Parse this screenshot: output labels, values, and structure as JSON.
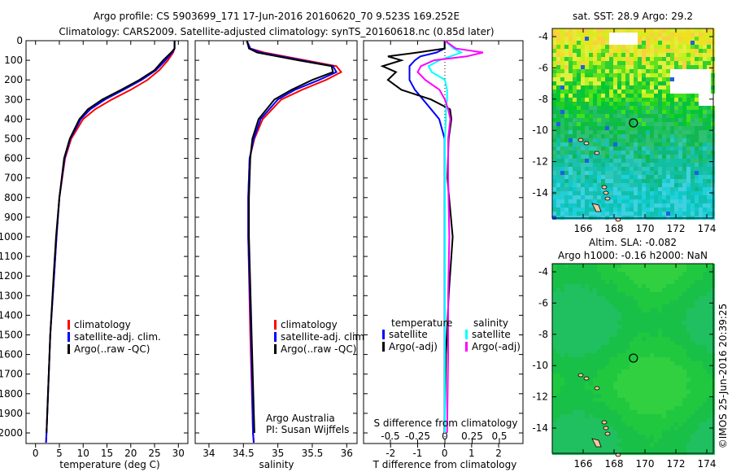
{
  "title_line1": "Argo profile: CS 5903699_171 17-Jun-2016 20160620_70 9.523S 169.252E",
  "title_line2": "Climatology: CARS2009. Satellite-adjusted climatology: synTS_20160618.nc (0.85d later)",
  "credit": "©IMOS 25-Jun-2016 20:39:25",
  "colors": {
    "climatology": "#ff0000",
    "satellite": "#0000ff",
    "argo": "#000000",
    "sal_sat": "#00ffff",
    "sal_argo": "#ff00ff",
    "land": "#f5c8a0"
  },
  "chart_data": [
    {
      "type": "line",
      "xlabel": "temperature (deg C)",
      "ylabel": "",
      "xlim": [
        -2,
        32
      ],
      "ylim": [
        2050,
        0
      ],
      "xticks": [
        0,
        5,
        10,
        15,
        20,
        25,
        30
      ],
      "yticks": [
        0,
        100,
        200,
        300,
        400,
        500,
        600,
        700,
        800,
        900,
        1000,
        1100,
        1200,
        1300,
        1400,
        1500,
        1600,
        1700,
        1800,
        1900,
        2000
      ],
      "legend": [
        "climatology",
        "satellite-adj. clim.",
        "Argo(..raw -QC)"
      ],
      "legend_position": "lower-center",
      "depth": [
        0,
        40,
        60,
        100,
        150,
        200,
        250,
        300,
        350,
        400,
        500,
        600,
        800,
        1000,
        1200,
        1500,
        2000,
        2050
      ],
      "series": [
        {
          "name": "climatology",
          "color": "#ff0000",
          "values": [
            29.2,
            29.2,
            28.9,
            27.8,
            26,
            23.5,
            20,
            16,
            12.5,
            10,
            7.5,
            6.2,
            5,
            4.4,
            3.9,
            3.1,
            2.3,
            2.2
          ]
        },
        {
          "name": "satellite-adj. clim.",
          "color": "#0000ff",
          "values": [
            29.2,
            29.2,
            28.7,
            27.3,
            25.3,
            22.3,
            18.5,
            14.6,
            11.5,
            9.5,
            7.3,
            6.1,
            5,
            4.4,
            3.9,
            3.1,
            2.3,
            2.2
          ]
        },
        {
          "name": "Argo(..raw -QC)",
          "color": "#000000",
          "values": [
            29.2,
            29.2,
            28.5,
            26.8,
            25,
            21.8,
            18,
            14,
            11,
            9.2,
            7.2,
            6,
            5,
            4.3,
            3.8,
            3.1,
            2.3
          ]
        }
      ]
    },
    {
      "type": "line",
      "xlabel": "salinity",
      "xlim": [
        33.8,
        36.15
      ],
      "ylim": [
        2050,
        0
      ],
      "xticks": [
        34,
        34.5,
        35,
        35.5,
        36
      ],
      "legend": [
        "climatology",
        "satellite-adj. clim.",
        "Argo(..raw -QC)"
      ],
      "annotations": [
        "Argo Australia",
        "PI: Susan Wijffels"
      ],
      "depth": [
        0,
        40,
        60,
        100,
        130,
        160,
        200,
        250,
        300,
        400,
        500,
        600,
        800,
        1000,
        1500,
        2000,
        2050
      ],
      "series": [
        {
          "name": "climatology",
          "color": "#ff0000",
          "values": [
            34.55,
            34.6,
            34.8,
            35.4,
            35.85,
            35.92,
            35.7,
            35.35,
            35.05,
            34.78,
            34.66,
            34.59,
            34.57,
            34.57,
            34.6,
            34.64,
            34.65
          ]
        },
        {
          "name": "satellite-adj. clim.",
          "color": "#0000ff",
          "values": [
            34.55,
            34.6,
            34.75,
            35.35,
            35.8,
            35.85,
            35.6,
            35.25,
            35,
            34.75,
            34.65,
            34.59,
            34.57,
            34.57,
            34.61,
            34.64,
            34.65
          ]
        },
        {
          "name": "Argo(..raw -QC)",
          "color": "#000000",
          "values": [
            34.55,
            34.58,
            34.7,
            35.3,
            35.78,
            35.8,
            35.5,
            35.2,
            34.95,
            34.72,
            34.63,
            34.6,
            34.58,
            34.58,
            34.62,
            34.66
          ]
        }
      ]
    },
    {
      "type": "line",
      "xlabel": "T difference from climatology",
      "x2label": "S difference from climatology",
      "xlim": [
        -3,
        2.9
      ],
      "ylim": [
        2050,
        0
      ],
      "xticks": [
        -2,
        -1,
        0,
        1,
        2
      ],
      "x2ticks": [
        -0.5,
        -0.25,
        0,
        0.25,
        0.5
      ],
      "legend_headers": [
        "temperature",
        "salinity"
      ],
      "legend": [
        "satellite",
        "Argo(-adj)",
        "satellite",
        "Argo(-adj)"
      ],
      "depth": [
        0,
        40,
        60,
        80,
        100,
        130,
        160,
        200,
        250,
        300,
        350,
        400,
        500,
        700,
        1000,
        1300,
        1600,
        2000
      ],
      "series": [
        {
          "name": "T satellite",
          "axis": "T",
          "color": "#0000ff",
          "values": [
            0,
            0,
            -0.3,
            -0.9,
            -1.1,
            -1.3,
            -1.3,
            -1.3,
            -1.1,
            -0.8,
            -0.5,
            -0.2,
            0,
            0,
            0,
            0,
            0,
            0
          ]
        },
        {
          "name": "T Argo(-adj)",
          "axis": "T",
          "color": "#000000",
          "values": [
            0,
            0,
            -1,
            -2.1,
            -1.6,
            -2.3,
            -1.8,
            -2.1,
            -1.6,
            -0.5,
            0.2,
            0.25,
            0.15,
            0.1,
            0.3,
            0.15,
            0.05,
            0
          ]
        },
        {
          "name": "S satellite",
          "axis": "S",
          "color": "#00ffff",
          "values": [
            0,
            0.08,
            0.15,
            0.05,
            -0.05,
            -0.15,
            -0.12,
            0,
            0.02,
            0.02,
            0.01,
            0.01,
            0,
            0,
            0,
            0,
            0,
            0
          ]
        },
        {
          "name": "S Argo(-adj)",
          "axis": "S",
          "color": "#ff00ff",
          "values": [
            0,
            0.1,
            0.35,
            0.2,
            -0.1,
            -0.22,
            -0.25,
            -0.18,
            -0.05,
            0,
            0.03,
            0.05,
            0.03,
            0.03,
            0.04,
            0.03,
            0.03,
            0.02
          ]
        }
      ]
    },
    {
      "type": "heatmap",
      "title": "sat. SST: 28.9 Argo: 29.2",
      "xticks": [
        166,
        168,
        170,
        172,
        174
      ],
      "yticks": [
        -4,
        -6,
        -8,
        -10,
        -12,
        -14
      ],
      "xlim": [
        164.1,
        174.4
      ],
      "ylim": [
        -15.6,
        -3.5
      ],
      "marker": {
        "lon": 169.252,
        "lat": -9.523
      }
    },
    {
      "type": "heatmap",
      "title_line1": "Altim. SLA: -0.082",
      "title_line2": "Argo h1000: -0.16 h2000: NaN",
      "xticks": [
        166,
        168,
        170,
        172,
        174
      ],
      "yticks": [
        -4,
        -6,
        -8,
        -10,
        -12,
        -14
      ],
      "xlim": [
        164.1,
        174.4
      ],
      "ylim": [
        -15.6,
        -3.5
      ],
      "marker": {
        "lon": 169.252,
        "lat": -9.523
      }
    }
  ]
}
